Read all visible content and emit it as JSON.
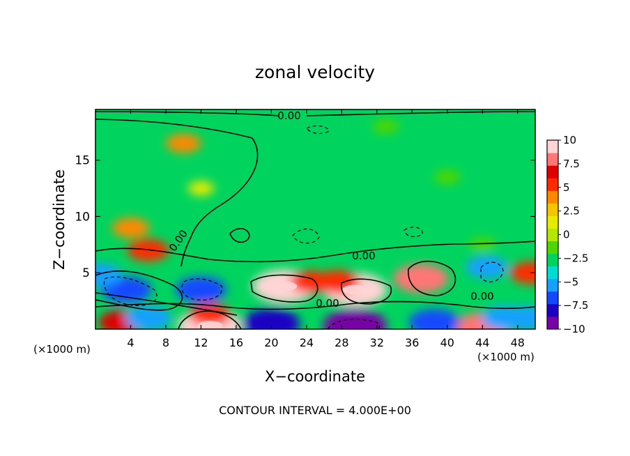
{
  "chart_data": {
    "type": "heatmap",
    "title": "zonal velocity",
    "xlabel": "X−coordinate",
    "ylabel": "Z−coordinate",
    "x_unit": "(×1000 m)",
    "z_unit": "(×1000 m)",
    "xlim": [
      0,
      50
    ],
    "ylim": [
      0,
      19.5
    ],
    "x_ticks": [
      "4",
      "8",
      "12",
      "16",
      "20",
      "24",
      "28",
      "32",
      "36",
      "40",
      "44",
      "48"
    ],
    "x_tick_values": [
      4,
      8,
      12,
      16,
      20,
      24,
      28,
      32,
      36,
      40,
      44,
      48
    ],
    "y_ticks": [
      "5",
      "10",
      "15"
    ],
    "y_tick_values": [
      5,
      10,
      15
    ],
    "colorbar": {
      "min": -10,
      "max": 10,
      "labels": [
        "10",
        "7.5",
        "5",
        "2.5",
        "0",
        "−2.5",
        "−5",
        "−7.5",
        "−10"
      ],
      "label_values": [
        10,
        7.5,
        5,
        2.5,
        0,
        -2.5,
        -5,
        -7.5,
        -10
      ],
      "colors": [
        "#7a00a8",
        "#1c00c4",
        "#1448ff",
        "#16a0ff",
        "#00dcd2",
        "#00d45e",
        "#4ed600",
        "#b4e600",
        "#e6ec00",
        "#f6c400",
        "#ff8800",
        "#ff2a00",
        "#e00000",
        "#ff7676",
        "#ffd4d4"
      ]
    },
    "contour_labels": [
      "0.00",
      "0.00",
      "0.00",
      "0.00",
      "0.00"
    ],
    "footer": "CONTOUR INTERVAL = 4.000E+00",
    "features": [
      {
        "x": 10,
        "z": 16.5,
        "u": 3.5
      },
      {
        "x": 4,
        "z": 9,
        "u": 4.0
      },
      {
        "x": 6,
        "z": 7.0,
        "u": 5.0
      },
      {
        "x": 12,
        "z": 12.5,
        "u": 1.5
      },
      {
        "x": 40,
        "z": 13.5,
        "u": -1.5
      },
      {
        "x": 24,
        "z": 19.3,
        "u": -2.5
      },
      {
        "x": 21.5,
        "z": 3.8,
        "u": 10.0
      },
      {
        "x": 24.5,
        "z": 4.2,
        "u": 5.0
      },
      {
        "x": 29.5,
        "z": 3.5,
        "u": 10.0
      },
      {
        "x": 27.5,
        "z": 4.2,
        "u": 5.5
      },
      {
        "x": 37,
        "z": 4.5,
        "u": 8.0
      },
      {
        "x": 13,
        "z": 0.3,
        "u": 10.0
      },
      {
        "x": 13,
        "z": 1.3,
        "u": 5.0
      },
      {
        "x": 3,
        "z": 0.6,
        "u": 6.0
      },
      {
        "x": 44,
        "z": 0.2,
        "u": 8.0
      },
      {
        "x": 49.5,
        "z": 5,
        "u": 5.0
      },
      {
        "x": 3.5,
        "z": 3.5,
        "u": -7.0
      },
      {
        "x": 0.5,
        "z": 4.8,
        "u": -5.5
      },
      {
        "x": 12,
        "z": 3.5,
        "u": -7.0
      },
      {
        "x": 6,
        "z": 1.0,
        "u": -6.0
      },
      {
        "x": 20,
        "z": 0.5,
        "u": -8.5
      },
      {
        "x": 29.5,
        "z": 0.3,
        "u": -10.0
      },
      {
        "x": 38.5,
        "z": 0.6,
        "u": -7.0
      },
      {
        "x": 44.5,
        "z": 5.5,
        "u": -5.0
      },
      {
        "x": 46.5,
        "z": 1.0,
        "u": -6.0
      },
      {
        "x": 49,
        "z": 1.0,
        "u": -5.5
      },
      {
        "x": 24,
        "z": 8.5,
        "u": -3.0
      },
      {
        "x": 34.5,
        "z": 9,
        "u": -2.5
      },
      {
        "x": 16,
        "z": 7.5,
        "u": -3.0
      },
      {
        "x": 44,
        "z": 7.5,
        "u": -1.5
      },
      {
        "x": 33,
        "z": 18,
        "u": -1.5
      }
    ]
  }
}
